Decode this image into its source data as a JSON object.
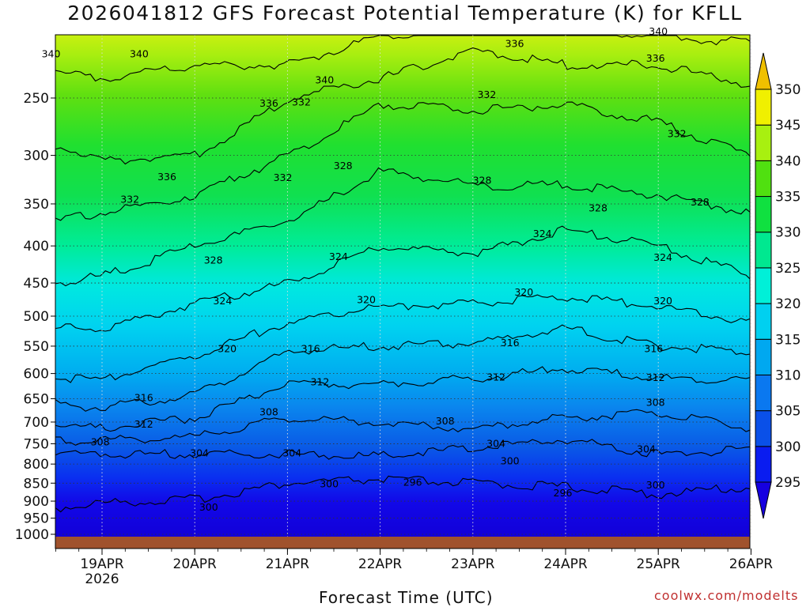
{
  "chart_data": {
    "type": "contour",
    "title": "2026041812 GFS Forecast Potential Temperature (K) for KFLL",
    "xlabel": "Forecast Time (UTC)",
    "ylabel": "Pressure (hPa)",
    "credit": "coolwx.com/modelts",
    "x_ticks": [
      {
        "day": 19,
        "label": "19APR",
        "sublabel": "2026"
      },
      {
        "day": 20,
        "label": "20APR",
        "sublabel": ""
      },
      {
        "day": 21,
        "label": "21APR",
        "sublabel": ""
      },
      {
        "day": 22,
        "label": "22APR",
        "sublabel": ""
      },
      {
        "day": 23,
        "label": "23APR",
        "sublabel": ""
      },
      {
        "day": 24,
        "label": "24APR",
        "sublabel": ""
      },
      {
        "day": 25,
        "label": "25APR",
        "sublabel": ""
      },
      {
        "day": 26,
        "label": "26APR",
        "sublabel": ""
      }
    ],
    "xlim": [
      18.5,
      26.0
    ],
    "y_ticks": [
      250,
      300,
      350,
      400,
      450,
      500,
      550,
      600,
      650,
      700,
      750,
      800,
      850,
      900,
      950,
      1000
    ],
    "ylim": [
      1000,
      200
    ],
    "colorbar": {
      "levels": [
        295,
        300,
        305,
        310,
        315,
        320,
        325,
        330,
        335,
        340,
        345,
        350
      ],
      "colors": [
        "#1600e0",
        "#0a1cf0",
        "#0a50e8",
        "#0a78f0",
        "#00a8f0",
        "#00d0f0",
        "#00f0d8",
        "#00e890",
        "#10e040",
        "#50e010",
        "#a8f010",
        "#f0f000",
        "#f0c000"
      ]
    },
    "contour_levels": [
      296,
      300,
      304,
      308,
      312,
      316,
      320,
      324,
      328,
      332,
      336,
      340
    ],
    "contour_profile": [
      {
        "level": 300,
        "pressure_by_day": [
          [
            18.5,
            920
          ],
          [
            19.0,
            905
          ],
          [
            20.0,
            895
          ],
          [
            21.0,
            850
          ],
          [
            22.0,
            840
          ],
          [
            23.0,
            850
          ],
          [
            24.0,
            860
          ],
          [
            25.0,
            880
          ],
          [
            26.0,
            860
          ]
        ]
      },
      {
        "level": 304,
        "pressure_by_day": [
          [
            18.5,
            775
          ],
          [
            19.0,
            775
          ],
          [
            20.0,
            775
          ],
          [
            21.0,
            775
          ],
          [
            22.0,
            780
          ],
          [
            23.0,
            760
          ],
          [
            24.0,
            740
          ],
          [
            25.0,
            775
          ],
          [
            26.0,
            765
          ]
        ]
      },
      {
        "level": 308,
        "pressure_by_day": [
          [
            18.5,
            745
          ],
          [
            19.0,
            740
          ],
          [
            20.0,
            735
          ],
          [
            21.0,
            690
          ],
          [
            22.0,
            700
          ],
          [
            23.0,
            715
          ],
          [
            24.0,
            690
          ],
          [
            25.0,
            680
          ],
          [
            26.0,
            715
          ]
        ]
      },
      {
        "level": 312,
        "pressure_by_day": [
          [
            18.5,
            705
          ],
          [
            19.0,
            715
          ],
          [
            20.0,
            690
          ],
          [
            21.0,
            620
          ],
          [
            22.0,
            620
          ],
          [
            23.0,
            610
          ],
          [
            24.0,
            590
          ],
          [
            25.0,
            610
          ],
          [
            26.0,
            610
          ]
        ]
      },
      {
        "level": 316,
        "pressure_by_day": [
          [
            18.5,
            660
          ],
          [
            19.0,
            670
          ],
          [
            20.0,
            640
          ],
          [
            21.0,
            560
          ],
          [
            22.0,
            550
          ],
          [
            23.0,
            545
          ],
          [
            24.0,
            520
          ],
          [
            25.0,
            550
          ],
          [
            26.0,
            560
          ]
        ]
      },
      {
        "level": 320,
        "pressure_by_day": [
          [
            18.5,
            610
          ],
          [
            19.0,
            610
          ],
          [
            20.0,
            565
          ],
          [
            21.0,
            510
          ],
          [
            22.0,
            485
          ],
          [
            23.0,
            480
          ],
          [
            24.0,
            470
          ],
          [
            25.0,
            485
          ],
          [
            26.0,
            510
          ]
        ]
      },
      {
        "level": 324,
        "pressure_by_day": [
          [
            18.5,
            520
          ],
          [
            19.0,
            520
          ],
          [
            20.0,
            480
          ],
          [
            21.0,
            450
          ],
          [
            22.0,
            400
          ],
          [
            23.0,
            410
          ],
          [
            24.0,
            380
          ],
          [
            25.0,
            400
          ],
          [
            26.0,
            440
          ]
        ]
      },
      {
        "level": 328,
        "pressure_by_day": [
          [
            18.5,
            450
          ],
          [
            19.0,
            440
          ],
          [
            20.0,
            400
          ],
          [
            21.0,
            370
          ],
          [
            22.0,
            315
          ],
          [
            23.0,
            330
          ],
          [
            24.0,
            330
          ],
          [
            25.0,
            340
          ],
          [
            26.0,
            360
          ]
        ]
      },
      {
        "level": 332,
        "pressure_by_day": [
          [
            18.5,
            370
          ],
          [
            19.0,
            360
          ],
          [
            20.0,
            340
          ],
          [
            21.0,
            300
          ],
          [
            22.0,
            255
          ],
          [
            23.0,
            260
          ],
          [
            24.0,
            255
          ],
          [
            25.0,
            270
          ],
          [
            26.0,
            300
          ]
        ]
      },
      {
        "level": 336,
        "pressure_by_day": [
          [
            18.5,
            290
          ],
          [
            19.0,
            305
          ],
          [
            20.0,
            300
          ],
          [
            21.0,
            250
          ],
          [
            22.0,
            235
          ],
          [
            23.0,
            215
          ],
          [
            24.0,
            225
          ],
          [
            25.0,
            225
          ],
          [
            26.0,
            240
          ]
        ]
      },
      {
        "level": 340,
        "pressure_by_day": [
          [
            18.5,
            230
          ],
          [
            19.0,
            235
          ],
          [
            20.0,
            225
          ],
          [
            21.0,
            225
          ],
          [
            22.0,
            205
          ],
          [
            23.0,
            200
          ],
          [
            24.0,
            200
          ],
          [
            25.0,
            205
          ],
          [
            26.0,
            210
          ]
        ]
      }
    ],
    "contour_labels": [
      {
        "text": "340",
        "day": 18.45,
        "pressure": 218
      },
      {
        "text": "340",
        "day": 19.4,
        "pressure": 218
      },
      {
        "text": "340",
        "day": 21.4,
        "pressure": 237
      },
      {
        "text": "340",
        "day": 25.0,
        "pressure": 203
      },
      {
        "text": "336",
        "day": 20.8,
        "pressure": 255
      },
      {
        "text": "336",
        "day": 23.45,
        "pressure": 211
      },
      {
        "text": "336",
        "day": 24.97,
        "pressure": 221
      },
      {
        "text": "336",
        "day": 19.7,
        "pressure": 322
      },
      {
        "text": "332",
        "day": 21.15,
        "pressure": 254
      },
      {
        "text": "332",
        "day": 23.15,
        "pressure": 248
      },
      {
        "text": "332",
        "day": 25.2,
        "pressure": 281
      },
      {
        "text": "332",
        "day": 20.95,
        "pressure": 323
      },
      {
        "text": "332",
        "day": 19.3,
        "pressure": 346
      },
      {
        "text": "328",
        "day": 21.6,
        "pressure": 311
      },
      {
        "text": "328",
        "day": 23.1,
        "pressure": 326
      },
      {
        "text": "328",
        "day": 24.35,
        "pressure": 356
      },
      {
        "text": "328",
        "day": 25.45,
        "pressure": 349
      },
      {
        "text": "328",
        "day": 20.2,
        "pressure": 420
      },
      {
        "text": "324",
        "day": 21.55,
        "pressure": 415
      },
      {
        "text": "324",
        "day": 23.75,
        "pressure": 386
      },
      {
        "text": "324",
        "day": 25.05,
        "pressure": 416
      },
      {
        "text": "324",
        "day": 20.3,
        "pressure": 478
      },
      {
        "text": "320",
        "day": 21.85,
        "pressure": 476
      },
      {
        "text": "320",
        "day": 23.55,
        "pressure": 465
      },
      {
        "text": "320",
        "day": 25.05,
        "pressure": 478
      },
      {
        "text": "320",
        "day": 20.35,
        "pressure": 556
      },
      {
        "text": "316",
        "day": 21.25,
        "pressure": 556
      },
      {
        "text": "316",
        "day": 23.4,
        "pressure": 546
      },
      {
        "text": "316",
        "day": 24.95,
        "pressure": 556
      },
      {
        "text": "316",
        "day": 19.45,
        "pressure": 650
      },
      {
        "text": "312",
        "day": 21.35,
        "pressure": 618
      },
      {
        "text": "312",
        "day": 23.25,
        "pressure": 609
      },
      {
        "text": "312",
        "day": 24.97,
        "pressure": 610
      },
      {
        "text": "312",
        "day": 19.45,
        "pressure": 707
      },
      {
        "text": "308",
        "day": 20.8,
        "pressure": 680
      },
      {
        "text": "308",
        "day": 22.7,
        "pressure": 700
      },
      {
        "text": "308",
        "day": 24.97,
        "pressure": 660
      },
      {
        "text": "308",
        "day": 18.98,
        "pressure": 748
      },
      {
        "text": "304",
        "day": 20.05,
        "pressure": 775
      },
      {
        "text": "304",
        "day": 21.05,
        "pressure": 775
      },
      {
        "text": "304",
        "day": 23.25,
        "pressure": 752
      },
      {
        "text": "304",
        "day": 24.87,
        "pressure": 765
      },
      {
        "text": "300",
        "day": 21.45,
        "pressure": 855
      },
      {
        "text": "300",
        "day": 23.4,
        "pressure": 795
      },
      {
        "text": "300",
        "day": 24.97,
        "pressure": 858
      },
      {
        "text": "300",
        "day": 20.15,
        "pressure": 920
      },
      {
        "text": "296",
        "day": 22.35,
        "pressure": 850
      },
      {
        "text": "296",
        "day": 23.97,
        "pressure": 880
      }
    ]
  }
}
